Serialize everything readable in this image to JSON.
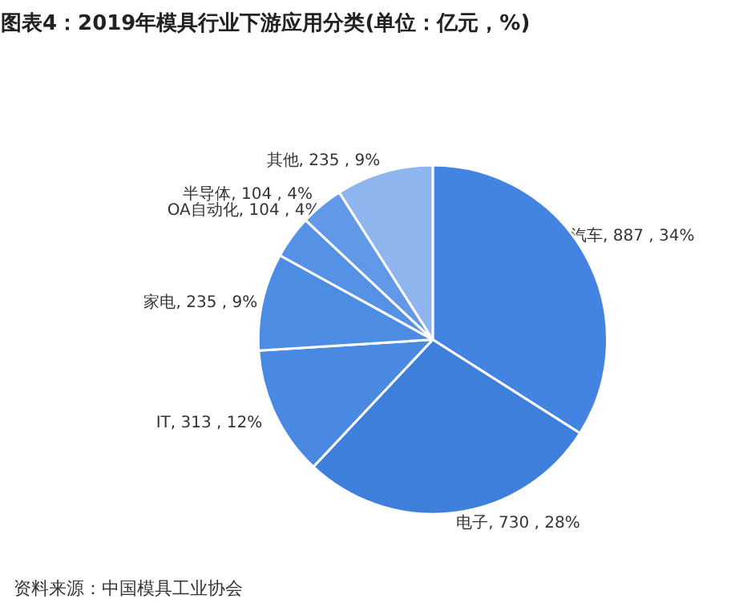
{
  "chart_data": {
    "type": "pie",
    "title": "图表4：2019年模具行业下游应用分类(单位：亿元，%)",
    "categories": [
      "汽车",
      "电子",
      "IT",
      "家电",
      "OA自动化",
      "半导体",
      "其他"
    ],
    "values": [
      887,
      730,
      313,
      235,
      104,
      104,
      235
    ],
    "value_labels": [
      "887 , 34%",
      "730 , 28%",
      "313 , 12%",
      "235 , 9%",
      "104 , 4%",
      "104 , 4%",
      "235 , 9%"
    ],
    "colors": [
      "#4384e2",
      "#3f7fdc",
      "#4a89e2",
      "#4d8ce3",
      "#5592e6",
      "#6199e8",
      "#8fb5ef"
    ],
    "annotations": [
      "资料来源：中国模具工业协会"
    ]
  }
}
